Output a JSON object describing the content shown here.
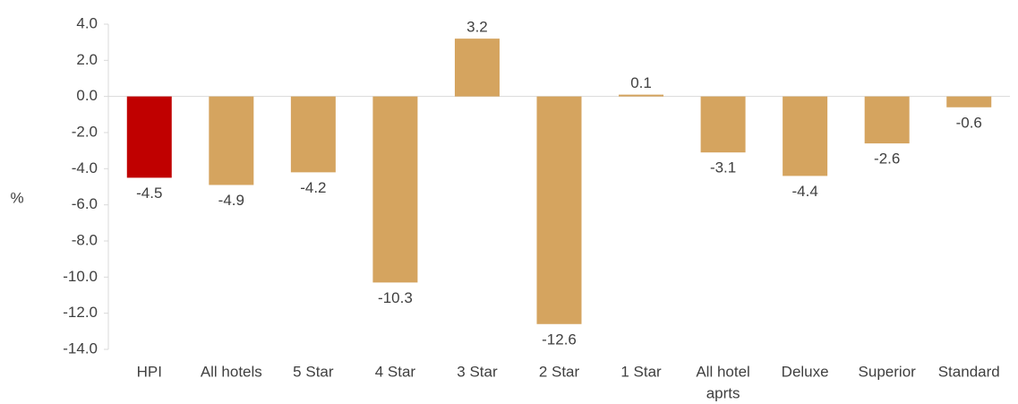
{
  "chart_data": {
    "type": "bar",
    "ylabel": "%",
    "ylim": [
      -14,
      4
    ],
    "yticks": [
      "4.0",
      "2.0",
      "0.0",
      "-2.0",
      "-4.0",
      "-6.0",
      "-8.0",
      "-10.0",
      "-12.0",
      "-14.0"
    ],
    "categories": [
      [
        "HPI"
      ],
      [
        "All hotels"
      ],
      [
        "5 Star"
      ],
      [
        "4 Star"
      ],
      [
        "3 Star"
      ],
      [
        "2 Star"
      ],
      [
        "1 Star"
      ],
      [
        "All hotel",
        "aprts"
      ],
      [
        "Deluxe"
      ],
      [
        "Superior"
      ],
      [
        "Standard"
      ]
    ],
    "values": [
      -4.5,
      -4.9,
      -4.2,
      -10.3,
      3.2,
      -12.6,
      0.1,
      -3.1,
      -4.4,
      -2.6,
      -0.6
    ],
    "data_labels": [
      "-4.5",
      "-4.9",
      "-4.2",
      "-10.3",
      "3.2",
      "-12.6",
      "0.1",
      "-3.1",
      "-4.4",
      "-2.6",
      "-0.6"
    ],
    "colors": {
      "highlight": "#c00000",
      "bar": "#d5a45f",
      "axis": "#d9d9d9"
    },
    "highlight_index": 0,
    "grid": false,
    "legend": "none"
  }
}
